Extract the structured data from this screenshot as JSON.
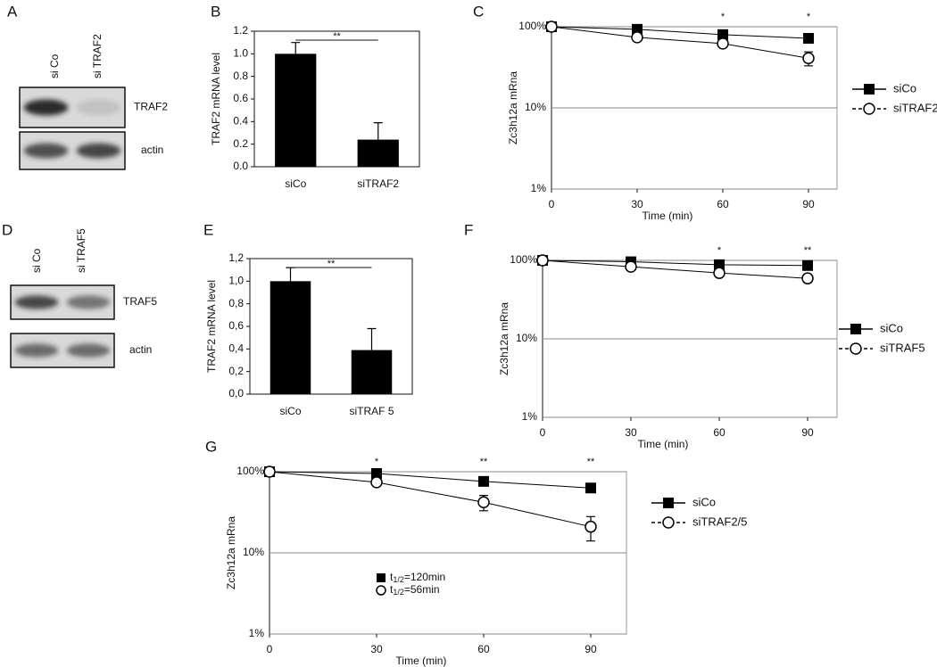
{
  "chart_data": [
    {
      "type": "blot",
      "panel": "A",
      "lanes": [
        "si Co",
        "si TRAF2"
      ],
      "bands": [
        "TRAF2",
        "actin"
      ]
    },
    {
      "type": "bar",
      "panel": "B",
      "y_label": "TRAF2 mRNA level",
      "categories": [
        "siCo",
        "siTRAF2"
      ],
      "values": [
        1.0,
        0.24
      ],
      "errors": [
        0.1,
        0.15
      ],
      "color": "#000000",
      "significance": "**",
      "ylim": [
        0,
        1.2
      ],
      "yticks": [
        {
          "value": 0,
          "label": "0.0"
        },
        0.2,
        0.4,
        0.6,
        0.8,
        {
          "value": 1,
          "label": "1.0"
        },
        1.2
      ]
    },
    {
      "type": "line",
      "panel": "C",
      "x_label": "Time (min)",
      "y_label": "Zc3h12a mRna",
      "log_y": true,
      "x": [
        0,
        30,
        60,
        90
      ],
      "xlim": [
        0,
        100
      ],
      "xticks": [
        0,
        30,
        60,
        90
      ],
      "ylim": [
        1,
        100
      ],
      "yticks": [
        {
          "value": 1,
          "label": "1%"
        },
        {
          "value": 10,
          "label": "10%"
        },
        {
          "value": 100,
          "label": "100%"
        }
      ],
      "stars": [
        null,
        null,
        "*",
        "*"
      ],
      "series": [
        {
          "name": "siCo",
          "color": "#000000",
          "marker": "square",
          "line_style": "solid",
          "values": [
            100,
            93,
            80,
            72
          ],
          "errors": [
            0,
            3,
            5,
            7
          ]
        },
        {
          "name": "siTRAF2",
          "color": "#000000",
          "marker": "circle",
          "line_style": "dashed",
          "values": [
            100,
            74,
            62,
            41
          ],
          "errors": [
            0,
            6,
            6,
            8
          ]
        }
      ]
    },
    {
      "type": "blot",
      "panel": "D",
      "lanes": [
        "si Co",
        "si TRAF5"
      ],
      "bands": [
        "TRAF5",
        "actin"
      ]
    },
    {
      "type": "bar",
      "panel": "E",
      "y_label": "TRAF2 mRNA level",
      "categories": [
        "siCo",
        "siTRAF 5"
      ],
      "values": [
        1.0,
        0.39
      ],
      "errors": [
        0.12,
        0.19
      ],
      "color": "#000000",
      "significance": "**",
      "ylim": [
        0,
        1.2
      ],
      "yticks": [
        {
          "value": 0,
          "label": "0,0"
        },
        {
          "value": 0.2,
          "label": "0,2"
        },
        {
          "value": 0.4,
          "label": "0,4"
        },
        {
          "value": 0.6,
          "label": "0,6"
        },
        {
          "value": 0.8,
          "label": "0,8"
        },
        {
          "value": 1,
          "label": "1,0"
        },
        {
          "value": 1.2,
          "label": "1,2"
        }
      ]
    },
    {
      "type": "line",
      "panel": "F",
      "x_label": "Time (min)",
      "y_label": "Zc3h12a mRna",
      "log_y": true,
      "x": [
        0,
        30,
        60,
        90
      ],
      "xlim": [
        0,
        100
      ],
      "xticks": [
        0,
        30,
        60,
        90
      ],
      "ylim": [
        1,
        100
      ],
      "yticks": [
        {
          "value": 1,
          "label": "1%"
        },
        {
          "value": 10,
          "label": "10%"
        },
        {
          "value": 100,
          "label": "100%"
        }
      ],
      "stars": [
        null,
        null,
        "*",
        "**"
      ],
      "series": [
        {
          "name": "siCo",
          "color": "#000000",
          "marker": "square",
          "line_style": "solid",
          "values": [
            100,
            96,
            88,
            86
          ],
          "errors": [
            0,
            3,
            4,
            4
          ]
        },
        {
          "name": "siTRAF5",
          "color": "#000000",
          "marker": "circle",
          "line_style": "dashed",
          "values": [
            100,
            83,
            69,
            59
          ],
          "errors": [
            0,
            4,
            5,
            5
          ]
        }
      ]
    },
    {
      "type": "line",
      "panel": "G",
      "x_label": "Time (min)",
      "y_label": "Zc3h12a mRna",
      "log_y": true,
      "x": [
        0,
        30,
        60,
        90
      ],
      "xlim": [
        0,
        100
      ],
      "xticks": [
        0,
        30,
        60,
        90
      ],
      "ylim": [
        1,
        100
      ],
      "yticks": [
        {
          "value": 1,
          "label": "1%"
        },
        {
          "value": 10,
          "label": "10%"
        },
        {
          "value": 100,
          "label": "100%"
        }
      ],
      "stars": [
        null,
        "*",
        "**",
        "**"
      ],
      "series": [
        {
          "name": "siCo",
          "color": "#000000",
          "marker": "square",
          "line_style": "solid",
          "values": [
            100,
            95,
            76,
            63
          ],
          "errors": [
            0,
            4,
            5,
            5
          ]
        },
        {
          "name": "siTRAF2/5",
          "color": "#000000",
          "marker": "circle",
          "line_style": "dashed",
          "values": [
            100,
            74,
            42,
            21
          ],
          "errors": [
            0,
            6,
            9,
            7
          ]
        }
      ],
      "annotations": [
        {
          "text": "t",
          "subscript": "1/2",
          "suffix": "=120min"
        },
        {
          "text": "t",
          "subscript": "1/2",
          "suffix": "=56min"
        }
      ]
    }
  ]
}
